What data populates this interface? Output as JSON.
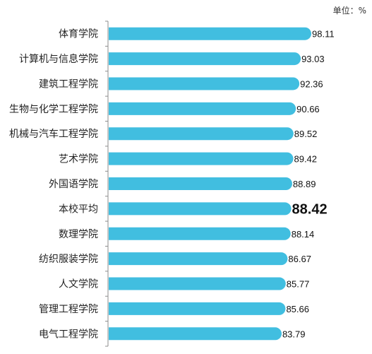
{
  "unit_label": "单位：%",
  "chart_data": {
    "type": "bar",
    "orientation": "horizontal",
    "categories": [
      "体育学院",
      "计算机与信息学院",
      "建筑工程学院",
      "生物与化学工程学院",
      "机械与汽车工程学院",
      "艺术学院",
      "外国语学院",
      "本校平均",
      "数理学院",
      "纺织服装学院",
      "人文学院",
      "管理工程学院",
      "电气工程学院"
    ],
    "values": [
      98.11,
      93.03,
      92.36,
      90.66,
      89.52,
      89.42,
      88.89,
      88.42,
      88.14,
      86.67,
      85.77,
      85.66,
      83.79
    ],
    "value_labels": [
      "98.11",
      "93.03",
      "92.36",
      "90.66",
      "89.52",
      "89.42",
      "88.89",
      "88.42",
      "88.14",
      "86.67",
      "85.77",
      "85.66",
      "83.79"
    ],
    "highlight_category": "本校平均",
    "bar_color": "#41BEE0",
    "xlim": [
      0,
      100
    ],
    "grid": false,
    "legend": "none"
  }
}
